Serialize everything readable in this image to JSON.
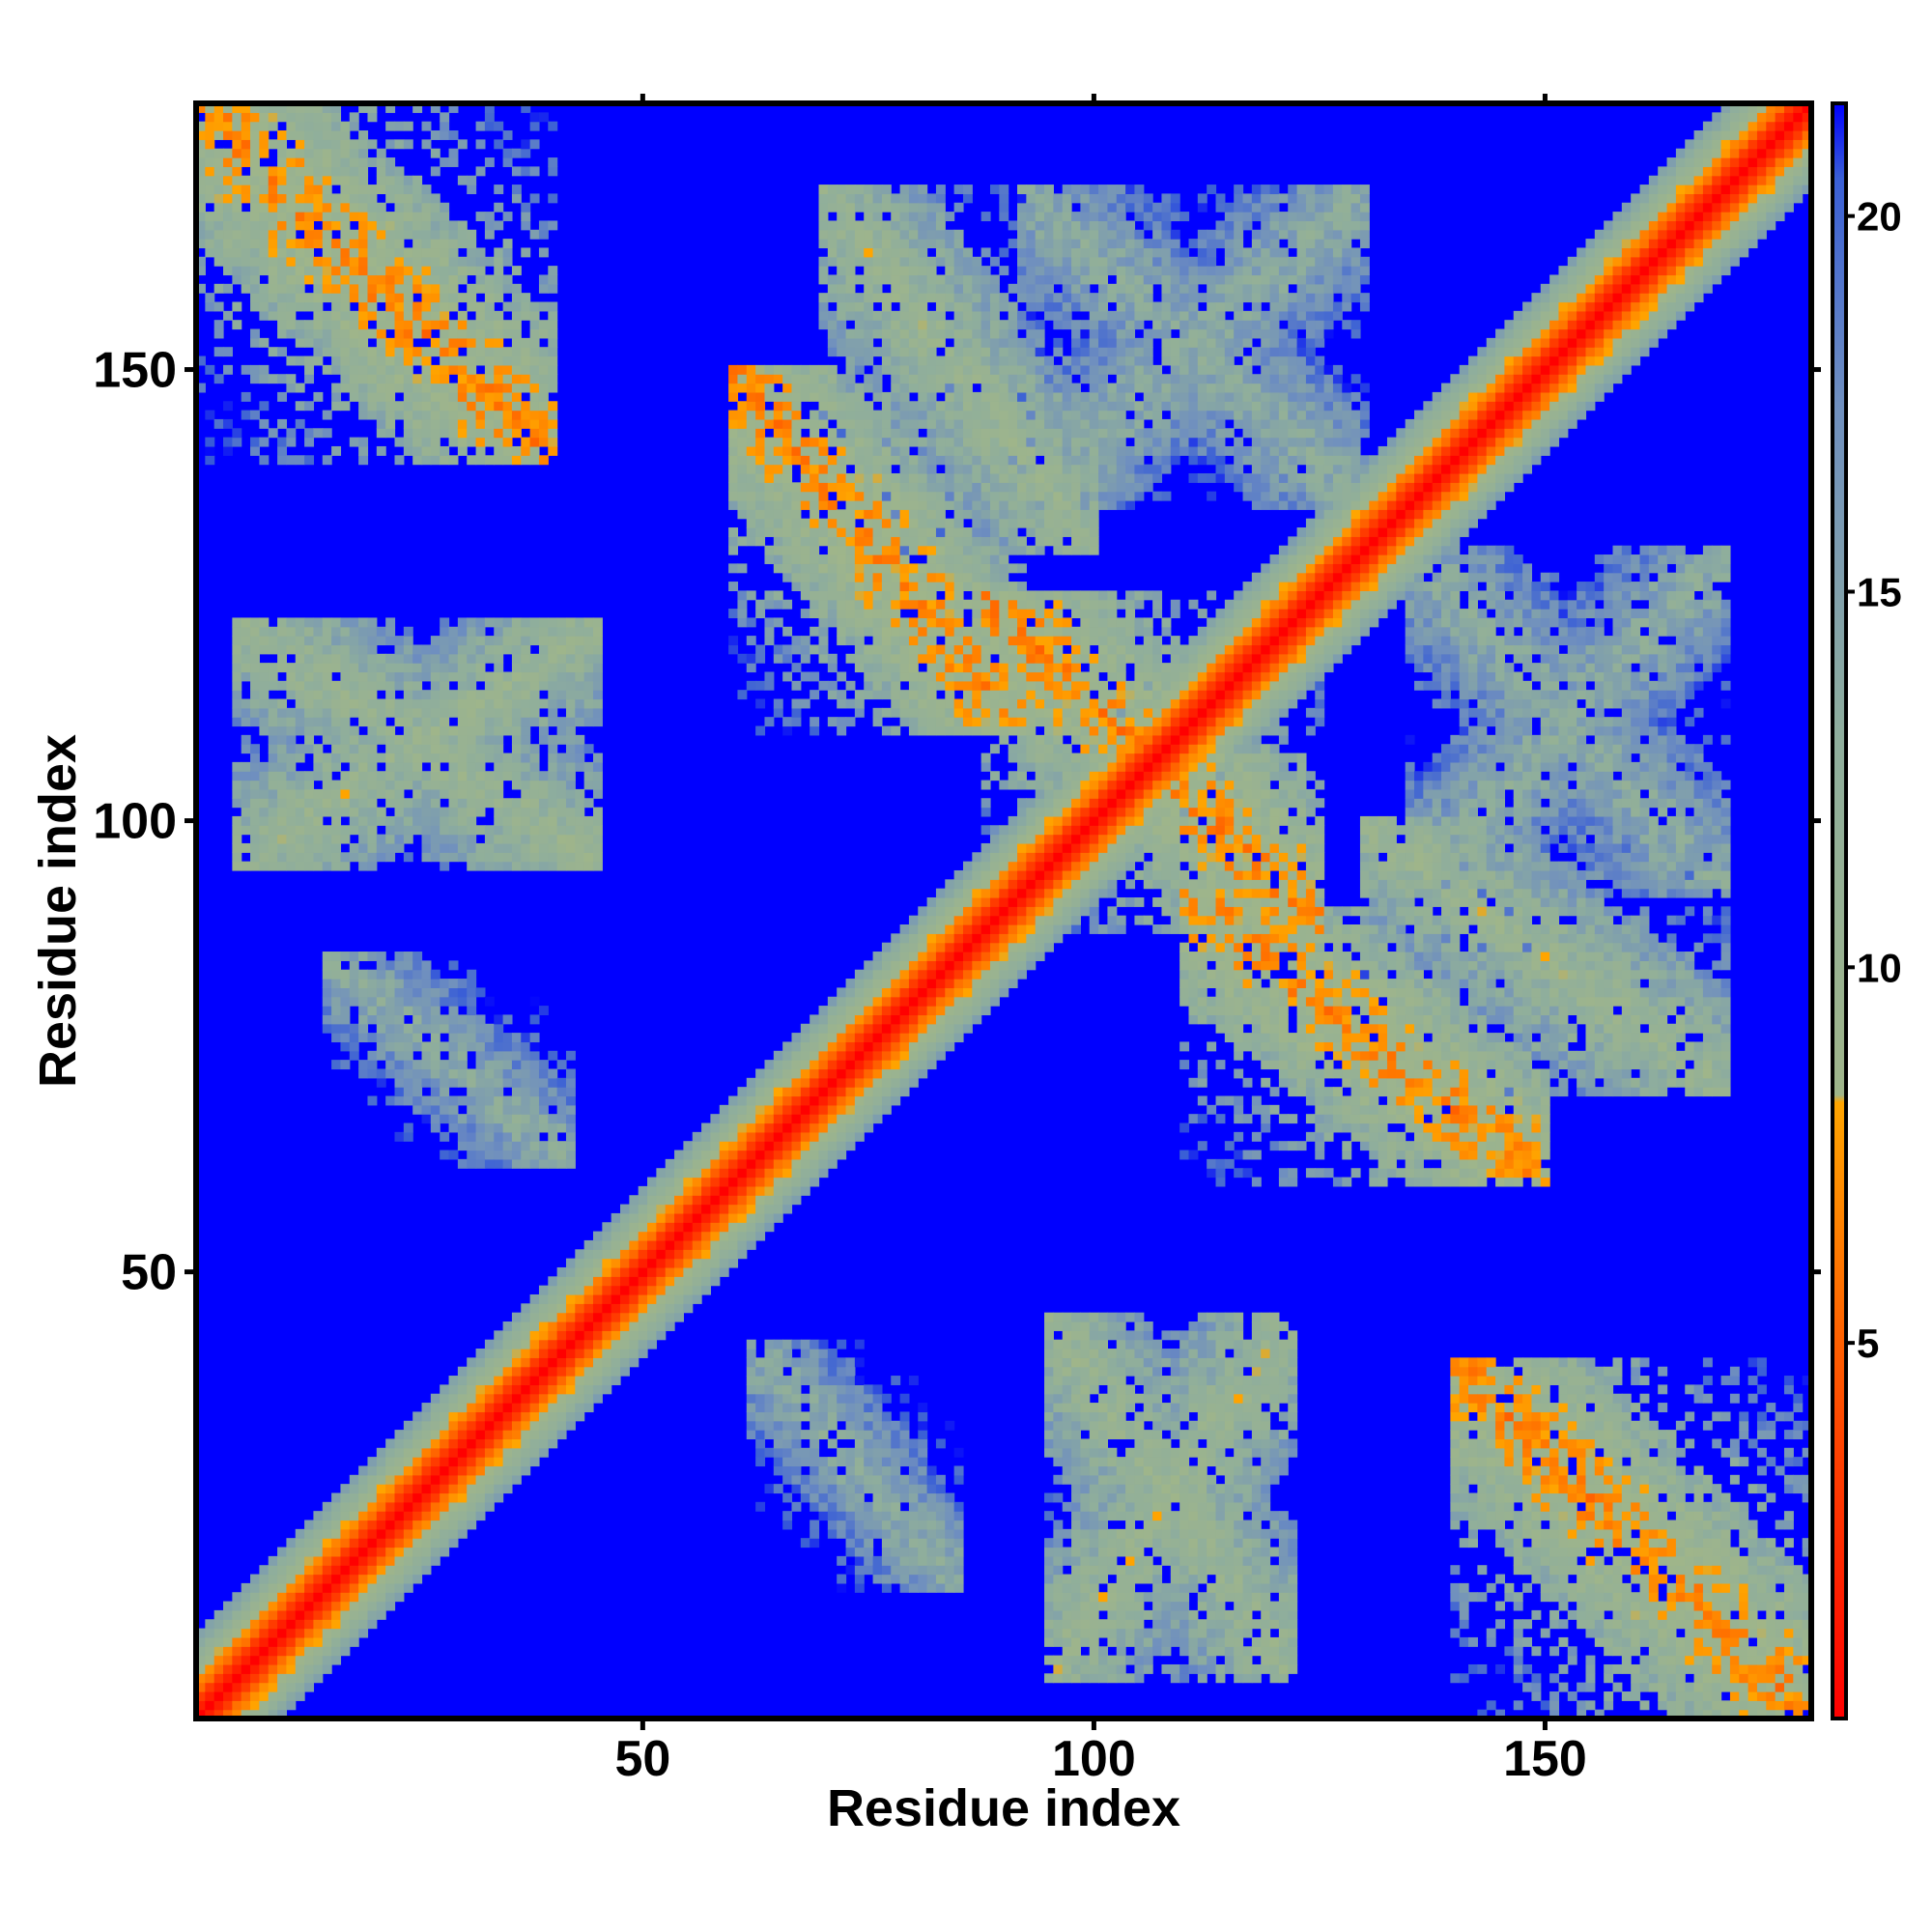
{
  "chart_data": {
    "type": "heatmap",
    "title": "",
    "xlabel": "Residue index",
    "ylabel": "Residue index",
    "xlim": [
      1,
      179
    ],
    "ylim": [
      1,
      179
    ],
    "x_ticks": [
      50,
      100,
      150
    ],
    "y_ticks": [
      50,
      100,
      150
    ],
    "x_tick_labels": [
      "50",
      "100",
      "150"
    ],
    "y_tick_labels": [
      "50",
      "100",
      "150"
    ],
    "n_residues": 179,
    "value_description": "pairwise residue distance map; low values near the diagonal, saturated high values elsewhere",
    "colorbar": {
      "range": [
        0,
        21.5
      ],
      "ticks": [
        5,
        10,
        15,
        20
      ],
      "tick_labels": [
        "5",
        "10",
        "15",
        "20"
      ],
      "stops": [
        {
          "value": 0,
          "color": "#ff0000"
        },
        {
          "value": 4,
          "color": "#ff4a00"
        },
        {
          "value": 8.2,
          "color": "#ffa500"
        },
        {
          "value": 8.3,
          "color": "#9fb58a"
        },
        {
          "value": 13,
          "color": "#8fae9c"
        },
        {
          "value": 17.5,
          "color": "#6f8fbf"
        },
        {
          "value": 20.5,
          "color": "#3a5fd6"
        },
        {
          "value": 21.5,
          "color": "#0000ff"
        }
      ]
    },
    "diagonal_band": {
      "description": "contacts along main diagonal",
      "half_width_residues": 9
    },
    "contact_regions": [
      {
        "x_range": [
          1,
          40
        ],
        "y_range": [
          140,
          179
        ],
        "strength": "strong",
        "orientation": "anti"
      },
      {
        "x_range": [
          140,
          179
        ],
        "y_range": [
          1,
          40
        ],
        "strength": "strong",
        "orientation": "anti"
      },
      {
        "x_range": [
          5,
          45
        ],
        "y_range": [
          95,
          122
        ],
        "strength": "medium",
        "orientation": "chevron"
      },
      {
        "x_range": [
          95,
          122
        ],
        "y_range": [
          5,
          45
        ],
        "strength": "medium",
        "orientation": "chevron"
      },
      {
        "x_range": [
          15,
          42
        ],
        "y_range": [
          62,
          85
        ],
        "strength": "weak",
        "orientation": "anti"
      },
      {
        "x_range": [
          62,
          85
        ],
        "y_range": [
          15,
          42
        ],
        "strength": "weak",
        "orientation": "anti"
      },
      {
        "x_range": [
          60,
          92
        ],
        "y_range": [
          110,
          150
        ],
        "strength": "strong",
        "orientation": "anti"
      },
      {
        "x_range": [
          110,
          150
        ],
        "y_range": [
          60,
          92
        ],
        "strength": "strong",
        "orientation": "anti"
      },
      {
        "x_range": [
          88,
          125
        ],
        "y_range": [
          88,
          125
        ],
        "strength": "strong",
        "orientation": "anti"
      },
      {
        "x_range": [
          130,
          170
        ],
        "y_range": [
          70,
          100
        ],
        "strength": "medium",
        "orientation": "anti"
      },
      {
        "x_range": [
          70,
          100
        ],
        "y_range": [
          130,
          170
        ],
        "strength": "medium",
        "orientation": "anti"
      },
      {
        "x_range": [
          92,
          130
        ],
        "y_range": [
          135,
          170
        ],
        "strength": "weak",
        "orientation": "mixed"
      },
      {
        "x_range": [
          135,
          170
        ],
        "y_range": [
          92,
          130
        ],
        "strength": "weak",
        "orientation": "mixed"
      }
    ]
  }
}
